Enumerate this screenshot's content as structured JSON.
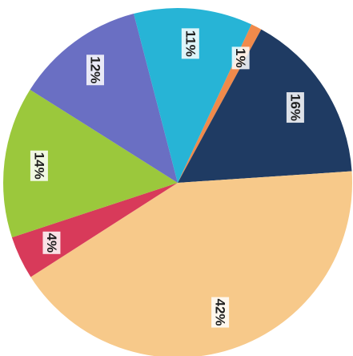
{
  "chart_data": {
    "type": "pie",
    "title": "",
    "slices": [
      {
        "label": "1%",
        "value": 1,
        "color": "#f08a4b"
      },
      {
        "label": "16%",
        "value": 16,
        "color": "#1f3b63"
      },
      {
        "label": "42%",
        "value": 42,
        "color": "#f7c98a"
      },
      {
        "label": "4%",
        "value": 4,
        "color": "#d83a5a"
      },
      {
        "label": "14%",
        "value": 14,
        "color": "#9bc83c"
      },
      {
        "label": "12%",
        "value": 12,
        "color": "#6a6fc3"
      },
      {
        "label": "11%",
        "value": 11,
        "color": "#27b4d6"
      }
    ],
    "start_angle_deg": -65,
    "direction": "clockwise",
    "label_rotation_deg": 90,
    "legend": "none"
  }
}
